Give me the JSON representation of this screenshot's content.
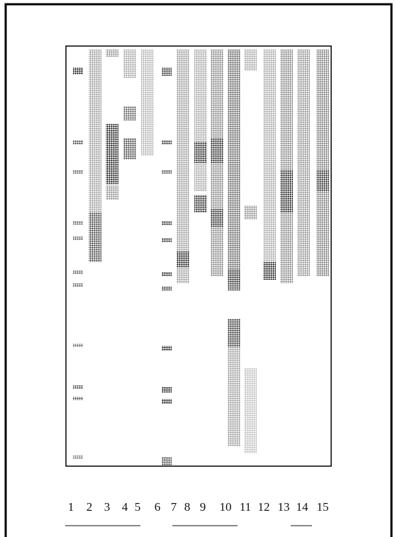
{
  "lanes": [
    "1",
    "2",
    "3",
    "4",
    "5",
    "6",
    "7",
    "8",
    "9",
    "10",
    "11",
    "12",
    "13",
    "14",
    "15"
  ]
}
